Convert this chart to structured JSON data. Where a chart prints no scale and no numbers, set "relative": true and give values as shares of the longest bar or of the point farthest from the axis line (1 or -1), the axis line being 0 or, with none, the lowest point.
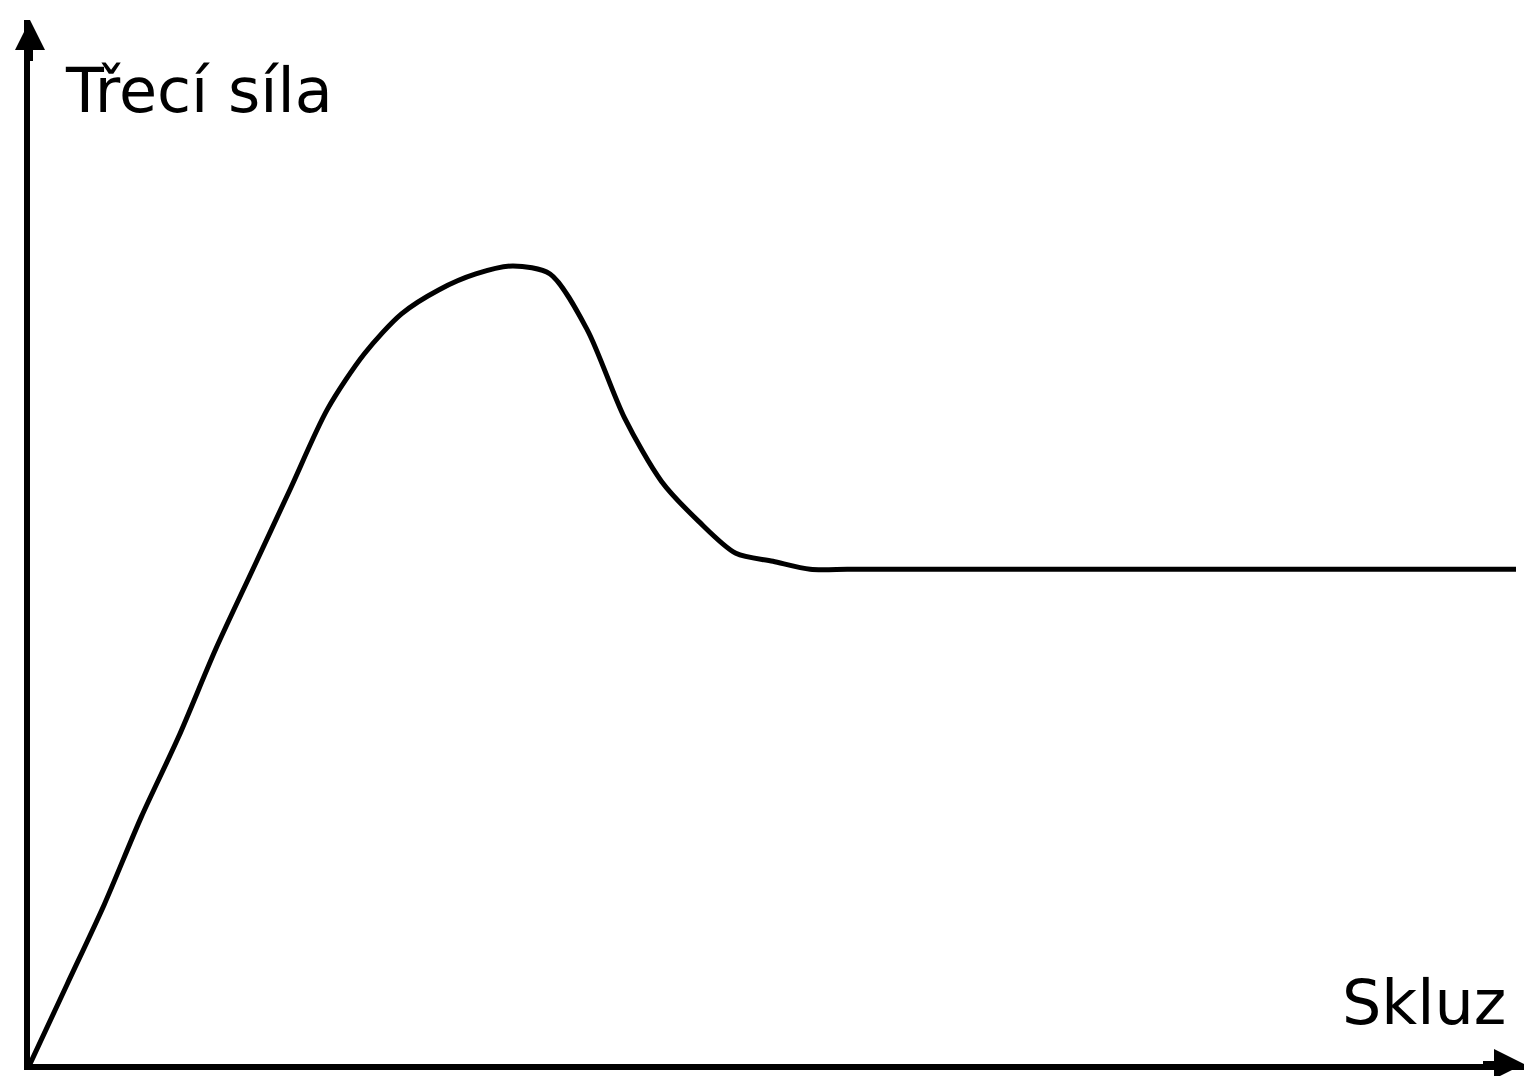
{
  "chart_data": {
    "type": "line",
    "xlabel": "Skluz",
    "ylabel": "Třecí síla",
    "relative": true,
    "color": "#000000",
    "categories": [
      null,
      null,
      null,
      null,
      null,
      null,
      null,
      null,
      null,
      null,
      null,
      null,
      null,
      null,
      null,
      null,
      null,
      null,
      null,
      null,
      null,
      null,
      null,
      null,
      null,
      null,
      null,
      null,
      null,
      null,
      null,
      null,
      null,
      null,
      null,
      null,
      null,
      null,
      null,
      null,
      null
    ],
    "values": [
      0,
      0.1,
      0.2,
      0.31,
      0.41,
      0.52,
      0.62,
      0.72,
      0.82,
      0.89,
      0.94,
      0.97,
      0.99,
      1,
      0.99,
      0.92,
      0.81,
      0.73,
      0.68,
      0.64,
      0.63,
      0.62,
      0.62,
      0.62,
      0.62,
      0.62,
      0.62,
      0.62,
      0.62,
      0.62,
      0.62,
      0.62,
      0.62,
      0.62,
      0.62,
      0.62,
      0.62,
      0.62,
      0.62,
      0.62,
      0.62
    ]
  }
}
